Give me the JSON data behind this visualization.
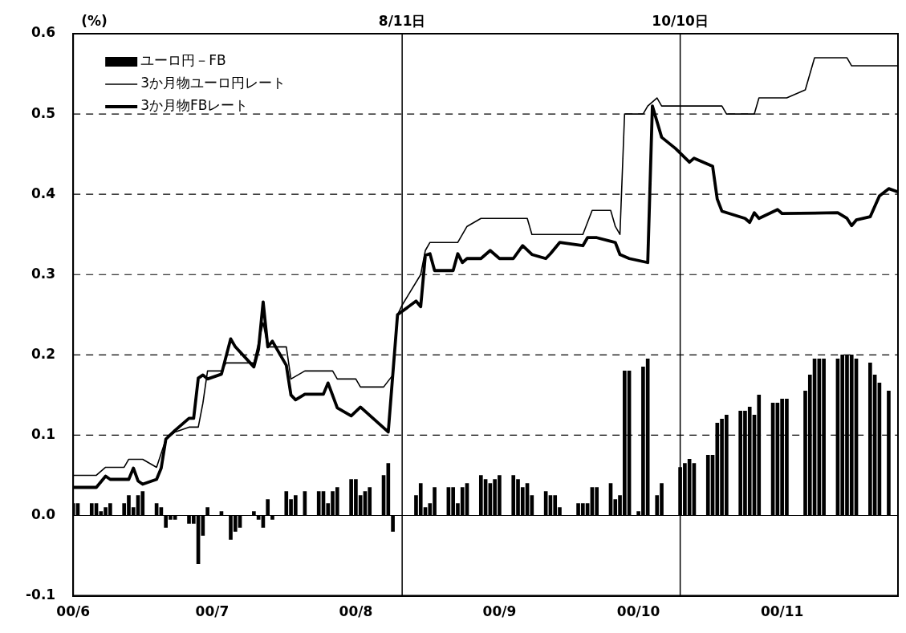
{
  "chart_data": {
    "type": "line",
    "ylabel": "(%)",
    "xlim": [
      "--06-01",
      "--11-26"
    ],
    "xticks": [
      {
        "value": "--06-01",
        "label": "00/6"
      },
      {
        "value": "--07-01",
        "label": "00/7"
      },
      {
        "value": "--08-01",
        "label": "00/8"
      },
      {
        "value": "--09-01",
        "label": "00/9"
      },
      {
        "value": "--10-01",
        "label": "00/10"
      },
      {
        "value": "--11-01",
        "label": "00/11"
      }
    ],
    "ylim": [
      -0.1,
      0.6
    ],
    "yticks": [
      -0.1,
      {
        "value": 0,
        "label": "0.0"
      },
      0.1,
      0.2,
      0.3,
      0.4,
      0.5,
      0.6
    ],
    "grid": "y",
    "legend": "top left",
    "marker": "none",
    "ref_lines": [
      {
        "axis": "x",
        "value": "--08-11",
        "label": "8/11日"
      },
      {
        "axis": "x",
        "value": "--10-10",
        "label": "10/10日"
      }
    ],
    "series": [
      {
        "name": "ユーロ円－FB",
        "type": "bar",
        "color": "#000000",
        "x": [
          "--06-01",
          "--06-02",
          "--06-05",
          "--06-06",
          "--06-07",
          "--06-08",
          "--06-09",
          "--06-12",
          "--06-13",
          "--06-14",
          "--06-15",
          "--06-16",
          "--06-19",
          "--06-20",
          "--06-21",
          "--06-22",
          "--06-23",
          "--06-26",
          "--06-27",
          "--06-28",
          "--06-29",
          "--06-30",
          "--07-03",
          "--07-05",
          "--07-06",
          "--07-07",
          "--07-10",
          "--07-11",
          "--07-12",
          "--07-13",
          "--07-14",
          "--07-17",
          "--07-18",
          "--07-19",
          "--07-21",
          "--07-24",
          "--07-25",
          "--07-26",
          "--07-27",
          "--07-28",
          "--07-31",
          "--08-01",
          "--08-02",
          "--08-03",
          "--08-04",
          "--08-07",
          "--08-08",
          "--08-09",
          "--08-14",
          "--08-15",
          "--08-16",
          "--08-17",
          "--08-18",
          "--08-21",
          "--08-22",
          "--08-23",
          "--08-24",
          "--08-25",
          "--08-28",
          "--08-29",
          "--08-30",
          "--08-31",
          "--09-01",
          "--09-04",
          "--09-05",
          "--09-06",
          "--09-07",
          "--09-08",
          "--09-11",
          "--09-12",
          "--09-13",
          "--09-14",
          "--09-18",
          "--09-19",
          "--09-20",
          "--09-21",
          "--09-22",
          "--09-25",
          "--09-26",
          "--09-27",
          "--09-28",
          "--09-29",
          "--10-01",
          "--10-02",
          "--10-03",
          "--10-05",
          "--10-06",
          "--10-10",
          "--10-11",
          "--10-12",
          "--10-13",
          "--10-16",
          "--10-17",
          "--10-18",
          "--10-19",
          "--10-20",
          "--10-23",
          "--10-24",
          "--10-25",
          "--10-26",
          "--10-27",
          "--10-30",
          "--10-31",
          "--11-01",
          "--11-02",
          "--11-06",
          "--11-07",
          "--11-08",
          "--11-09",
          "--11-10",
          "--11-13",
          "--11-14",
          "--11-15",
          "--11-16",
          "--11-17",
          "--11-20",
          "--11-21",
          "--11-22",
          "--11-24"
        ],
        "values": [
          0.015,
          0.015,
          0.015,
          0.015,
          0.005,
          0.01,
          0.015,
          0.015,
          0.025,
          0.01,
          0.025,
          0.03,
          0.015,
          0.01,
          -0.015,
          -0.005,
          -0.005,
          -0.01,
          -0.01,
          -0.06,
          -0.025,
          0.01,
          0.005,
          -0.03,
          -0.02,
          -0.015,
          0.005,
          -0.005,
          -0.015,
          0.02,
          -0.005,
          0.03,
          0.02,
          0.025,
          0.03,
          0.03,
          0.03,
          0.015,
          0.03,
          0.035,
          0.045,
          0.045,
          0.025,
          0.03,
          0.035,
          0.05,
          0.065,
          -0.02,
          0.025,
          0.04,
          0.01,
          0.015,
          0.035,
          0.035,
          0.035,
          0.015,
          0.035,
          0.04,
          0.05,
          0.045,
          0.04,
          0.045,
          0.05,
          0.05,
          0.045,
          0.035,
          0.04,
          0.025,
          0.03,
          0.025,
          0.025,
          0.01,
          0.015,
          0.015,
          0.015,
          0.035,
          0.035,
          0.04,
          0.02,
          0.025,
          0.18,
          0.18,
          0.005,
          0.185,
          0.195,
          0.025,
          0.04,
          0.06,
          0.065,
          0.07,
          0.065,
          0.075,
          0.075,
          0.115,
          0.12,
          0.125,
          0.13,
          0.13,
          0.135,
          0.125,
          0.15,
          0.14,
          0.14,
          0.145,
          0.145,
          0.155,
          0.175,
          0.195,
          0.195,
          0.195,
          0.195,
          0.2,
          0.2,
          0.2,
          0.195,
          0.19,
          0.175,
          0.165,
          0.155
        ]
      },
      {
        "name": "3か月物ユーロ円レート",
        "color": "#000000",
        "x": [
          "--06-01",
          "--06-06",
          "--06-08",
          "--06-12",
          "--06-13",
          "--06-16",
          "--06-19",
          "--06-21",
          "--06-23",
          "--06-26",
          "--06-28",
          "--06-29",
          "--06-30",
          "--07-03",
          "--07-04",
          "--07-10",
          "--07-12",
          "--07-13",
          "--07-17",
          "--07-18",
          "--07-21",
          "--07-27",
          "--07-28",
          "--08-01",
          "--08-02",
          "--08-07",
          "--08-09",
          "--08-10",
          "--08-11",
          "--08-15",
          "--08-16",
          "--08-17",
          "--08-23",
          "--08-25",
          "--08-28",
          "--09-07",
          "--09-08",
          "--09-19",
          "--09-21",
          "--09-25",
          "--09-26",
          "--09-27",
          "--09-28",
          "--10-02",
          "--10-03",
          "--10-05",
          "--10-06",
          "--10-19",
          "--10-20",
          "--10-26",
          "--10-27",
          "--11-02",
          "--11-06",
          "--11-08",
          "--11-15",
          "--11-16",
          "--11-26"
        ],
        "values": [
          0.05,
          0.05,
          0.06,
          0.06,
          0.07,
          0.07,
          0.06,
          0.095,
          0.104,
          0.11,
          0.11,
          0.14,
          0.18,
          0.18,
          0.19,
          0.19,
          0.24,
          0.21,
          0.21,
          0.17,
          0.18,
          0.18,
          0.17,
          0.17,
          0.16,
          0.16,
          0.175,
          0.25,
          0.262,
          0.3,
          0.33,
          0.34,
          0.34,
          0.36,
          0.37,
          0.37,
          0.35,
          0.35,
          0.38,
          0.38,
          0.36,
          0.35,
          0.5,
          0.5,
          0.51,
          0.52,
          0.51,
          0.51,
          0.5,
          0.5,
          0.52,
          0.52,
          0.53,
          0.57,
          0.57,
          0.56,
          0.56
        ]
      },
      {
        "name": "3か月物FBレート",
        "color": "#000000",
        "x": [
          "--06-01",
          "--06-06",
          "--06-08",
          "--06-09",
          "--06-13",
          "--06-14",
          "--06-15",
          "--06-16",
          "--06-19",
          "--06-20",
          "--06-21",
          "--06-23",
          "--06-26",
          "--06-27",
          "--06-28",
          "--06-29",
          "--06-30",
          "--07-03",
          "--07-05",
          "--07-06",
          "--07-10",
          "--07-11",
          "--07-12",
          "--07-13",
          "--07-14",
          "--07-17",
          "--07-18",
          "--07-19",
          "--07-21",
          "--07-25",
          "--07-26",
          "--07-28",
          "--07-31",
          "--08-02",
          "--08-08",
          "--08-10",
          "--08-14",
          "--08-15",
          "--08-16",
          "--08-17",
          "--08-18",
          "--08-22",
          "--08-23",
          "--08-24",
          "--08-25",
          "--08-28",
          "--08-30",
          "--09-01",
          "--09-04",
          "--09-06",
          "--09-08",
          "--09-11",
          "--09-12",
          "--09-14",
          "--09-19",
          "--09-20",
          "--09-22",
          "--09-26",
          "--09-27",
          "--09-29",
          "--10-03",
          "--10-04",
          "--10-06",
          "--10-09",
          "--10-12",
          "--10-13",
          "--10-17",
          "--10-18",
          "--10-19",
          "--10-24",
          "--10-25",
          "--10-26",
          "--10-27",
          "--10-31",
          "--11-01",
          "--11-13",
          "--11-15",
          "--11-16",
          "--11-17",
          "--11-20",
          "--11-22",
          "--11-24",
          "--11-26"
        ],
        "values": [
          0.035,
          0.035,
          0.049,
          0.045,
          0.045,
          0.059,
          0.043,
          0.039,
          0.045,
          0.059,
          0.095,
          0.106,
          0.121,
          0.121,
          0.171,
          0.175,
          0.17,
          0.176,
          0.22,
          0.21,
          0.185,
          0.207,
          0.266,
          0.21,
          0.217,
          0.187,
          0.15,
          0.144,
          0.151,
          0.151,
          0.165,
          0.134,
          0.124,
          0.135,
          0.104,
          0.25,
          0.267,
          0.26,
          0.324,
          0.326,
          0.305,
          0.305,
          0.326,
          0.315,
          0.32,
          0.32,
          0.33,
          0.32,
          0.32,
          0.336,
          0.325,
          0.32,
          0.326,
          0.34,
          0.336,
          0.346,
          0.346,
          0.34,
          0.325,
          0.32,
          0.315,
          0.51,
          0.471,
          0.457,
          0.44,
          0.445,
          0.435,
          0.394,
          0.379,
          0.37,
          0.365,
          0.377,
          0.37,
          0.381,
          0.376,
          0.377,
          0.37,
          0.361,
          0.368,
          0.372,
          0.398,
          0.407,
          0.403
        ]
      }
    ]
  }
}
